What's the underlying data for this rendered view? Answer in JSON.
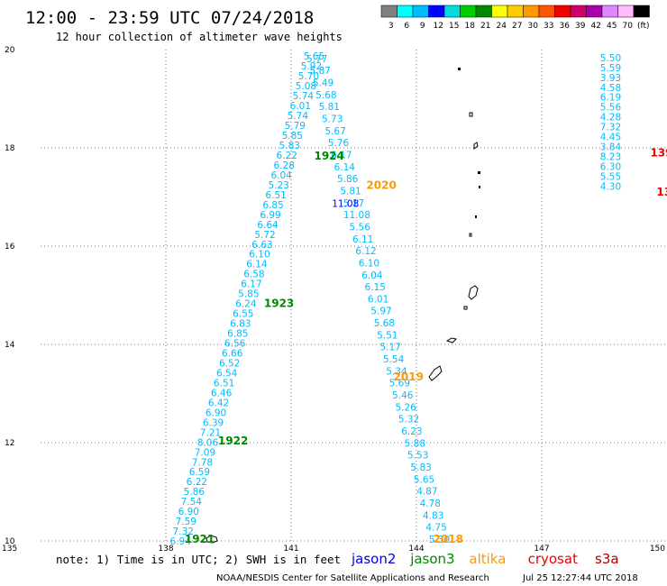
{
  "header": {
    "title": "12:00 - 23:59 UTC 07/24/2018",
    "subtitle": "12 hour collection of altimeter wave heights"
  },
  "footer": {
    "note": "note: 1) Time is in UTC; 2) SWH is in feet",
    "credit": "NOAA/NESDIS Center for Satellite Applications and Research",
    "timestamp": "Jul 25 12:27:44 UTC 2018"
  },
  "satellites": [
    {
      "name": "jason2",
      "color": "#0000ee"
    },
    {
      "name": "jason3",
      "color": "#008800"
    },
    {
      "name": "altika",
      "color": "#ff9900"
    },
    {
      "name": "cryosat",
      "color": "#ee0000"
    },
    {
      "name": "s3a",
      "color": "#aa0000"
    }
  ],
  "color_scale": {
    "labels": [
      "3",
      "6",
      "9",
      "12",
      "15",
      "18",
      "21",
      "24",
      "27",
      "30",
      "33",
      "36",
      "39",
      "42",
      "45",
      "70",
      "(ft)"
    ],
    "colors": [
      "#808080",
      "#00ffff",
      "#00bbff",
      "#0000ff",
      "#00dddd",
      "#00cc00",
      "#008800",
      "#ffff00",
      "#ffcc00",
      "#ff9900",
      "#ff5500",
      "#ee0000",
      "#cc0066",
      "#aa00aa",
      "#dd88ff",
      "#ffbbff",
      "#000000"
    ]
  },
  "chart_data": {
    "type": "scatter",
    "xlim": [
      135,
      150
    ],
    "ylim": [
      10,
      20
    ],
    "x_ticks": [
      135,
      138,
      141,
      144,
      147,
      150
    ],
    "y_ticks": [
      10,
      12,
      14,
      16,
      18,
      20
    ],
    "grid": "dotted",
    "tracks": [
      {
        "color": "#00bbff",
        "start": [
          138.35,
          9.98
        ],
        "end": [
          141.55,
          19.85
        ],
        "values": [
          "6.94",
          "7.32",
          "7.59",
          "6.90",
          "7.54",
          "5.86",
          "6.22",
          "6.59",
          "7.78",
          "7.09",
          "8.06",
          "7.21",
          "6.39",
          "6.90",
          "6.42",
          "6.46",
          "6.51",
          "6.54",
          "6.52",
          "6.66",
          "6.56",
          "6.85",
          "6.83",
          "6.55",
          "6.24",
          "5.85",
          "6.17",
          "6.58",
          "6.14",
          "6.10",
          "6.63",
          "5.72",
          "6.64",
          "6.99",
          "6.85",
          "6.51",
          "5.23",
          "6.04",
          "6.28",
          "6.22",
          "5.83",
          "5.85",
          "5.79",
          "5.74",
          "6.01",
          "5.74",
          "5.08",
          "5.70",
          "5.92",
          "5.65"
        ]
      },
      {
        "color": "#00bbff",
        "start": [
          141.62,
          19.8
        ],
        "end": [
          144.55,
          10.02
        ],
        "values": [
          "5.77",
          "5.87",
          "5.49",
          "5.68",
          "5.81",
          "5.73",
          "5.67",
          "5.76",
          "6.17",
          "6.14",
          "5.86",
          "5.81",
          "5.17",
          "11.08",
          "5.56",
          "6.11",
          "6.12",
          "6.10",
          "6.04",
          "6.15",
          "6.01",
          "5.97",
          "5.68",
          "5.51",
          "5.17",
          "5.54",
          "5.34",
          "5.69",
          "5.46",
          "5.26",
          "5.32",
          "6.23",
          "5.88",
          "5.53",
          "5.83",
          "5.65",
          "4.87",
          "4.78",
          "4.83",
          "4.75",
          "5.30"
        ]
      },
      {
        "color": "#00bbff",
        "start": [
          148.65,
          19.82
        ],
        "end": [
          148.65,
          17.2
        ],
        "values": [
          "5.50",
          "5.59",
          "3.93",
          "4.58",
          "6.19",
          "5.56",
          "4.28",
          "7.32",
          "4.45",
          "3.84",
          "8.23",
          "6.30",
          "5.55",
          "4.30"
        ]
      }
    ],
    "highlight_values": [
      {
        "text": "11.08",
        "x": 142.3,
        "y": 16.85,
        "color": "#0000ee"
      }
    ],
    "pass_labels": [
      {
        "text": "1921",
        "x": 138.45,
        "y": 10.0,
        "color": "#008800"
      },
      {
        "text": "1922",
        "x": 139.25,
        "y": 12.0,
        "color": "#008800"
      },
      {
        "text": "1923",
        "x": 140.35,
        "y": 14.8,
        "color": "#008800"
      },
      {
        "text": "1924",
        "x": 141.55,
        "y": 17.8,
        "color": "#008800"
      },
      {
        "text": "2020",
        "x": 142.8,
        "y": 17.2,
        "color": "#ff9900"
      },
      {
        "text": "2019",
        "x": 143.45,
        "y": 13.3,
        "color": "#ff9900"
      },
      {
        "text": "2018",
        "x": 144.4,
        "y": 10.0,
        "color": "#ff9900"
      }
    ],
    "partial_labels": [
      {
        "text": "139",
        "x": 149.6,
        "y": 17.9,
        "color": "#ee0000"
      },
      {
        "text": "13",
        "x": 149.75,
        "y": 17.1,
        "color": "#ee0000"
      }
    ]
  }
}
